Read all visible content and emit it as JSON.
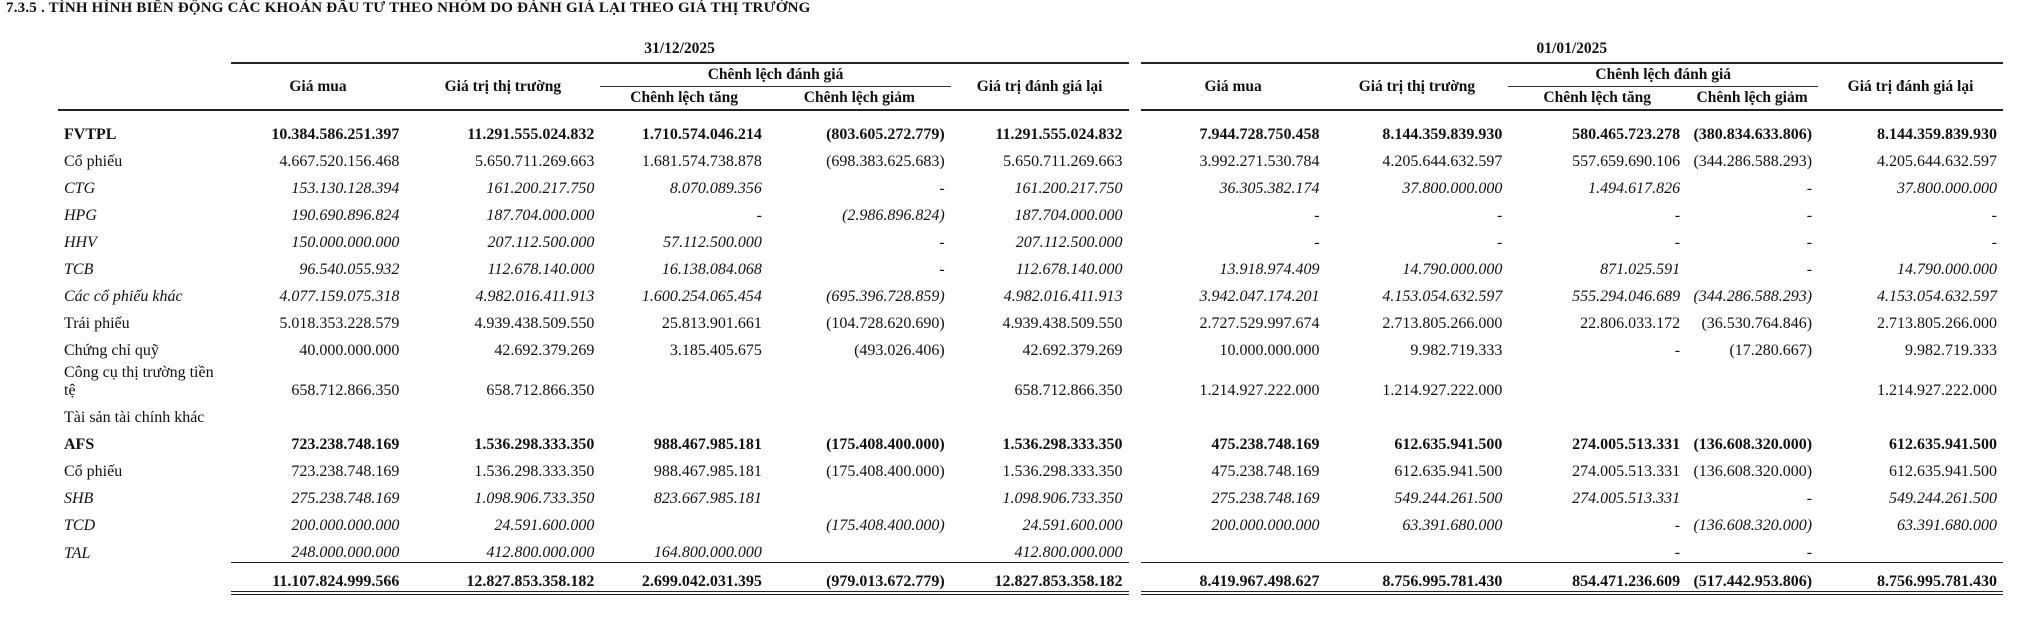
{
  "header": {
    "title": "7.3.5 . TÌNH HÌNH BIẾN ĐỘNG CÁC KHOẢN ĐẦU TƯ THEO NHÓM DO ĐÁNH GIÁ LẠI THEO GIÁ THỊ TRƯỜNG"
  },
  "table": {
    "periods": [
      "31/12/2025",
      "01/01/2025"
    ],
    "columns": [
      "Giá mua",
      "Giá trị thị trường",
      "Chênh lệch đánh giá",
      "Chênh lệch tăng",
      "Chênh lệch giảm",
      "Giá trị đánh giá lại"
    ],
    "rows": [
      {
        "label": "FVTPL",
        "values": [
          "10.384.586.251.397",
          "11.291.555.024.832",
          "1.710.574.046.214",
          "(803.605.272.779)",
          "11.291.555.024.832",
          "7.944.728.750.458",
          "8.144.359.839.930",
          "580.465.723.278",
          "(380.834.633.806)",
          "8.144.359.839.930"
        ]
      },
      {
        "label": "Cổ phiếu",
        "values": [
          "4.667.520.156.468",
          "5.650.711.269.663",
          "1.681.574.738.878",
          "(698.383.625.683)",
          "5.650.711.269.663",
          "3.992.271.530.784",
          "4.205.644.632.597",
          "557.659.690.106",
          "(344.286.588.293)",
          "4.205.644.632.597"
        ]
      },
      {
        "label": "CTG",
        "values": [
          "153.130.128.394",
          "161.200.217.750",
          "8.070.089.356",
          "-",
          "161.200.217.750",
          "36.305.382.174",
          "37.800.000.000",
          "1.494.617.826",
          "-",
          "37.800.000.000"
        ]
      },
      {
        "label": "HPG",
        "values": [
          "190.690.896.824",
          "187.704.000.000",
          "-",
          "(2.986.896.824)",
          "187.704.000.000",
          "-",
          "-",
          "-",
          "-",
          "-"
        ]
      },
      {
        "label": "HHV",
        "values": [
          "150.000.000.000",
          "207.112.500.000",
          "57.112.500.000",
          "-",
          "207.112.500.000",
          "-",
          "-",
          "-",
          "-",
          "-"
        ]
      },
      {
        "label": "TCB",
        "values": [
          "96.540.055.932",
          "112.678.140.000",
          "16.138.084.068",
          "-",
          "112.678.140.000",
          "13.918.974.409",
          "14.790.000.000",
          "871.025.591",
          "-",
          "14.790.000.000"
        ]
      },
      {
        "label": "Các cổ phiếu khác",
        "values": [
          "4.077.159.075.318",
          "4.982.016.411.913",
          "1.600.254.065.454",
          "(695.396.728.859)",
          "4.982.016.411.913",
          "3.942.047.174.201",
          "4.153.054.632.597",
          "555.294.046.689",
          "(344.286.588.293)",
          "4.153.054.632.597"
        ]
      },
      {
        "label": "Trái phiếu",
        "values": [
          "5.018.353.228.579",
          "4.939.438.509.550",
          "25.813.901.661",
          "(104.728.620.690)",
          "4.939.438.509.550",
          "2.727.529.997.674",
          "2.713.805.266.000",
          "22.806.033.172",
          "(36.530.764.846)",
          "2.713.805.266.000"
        ]
      },
      {
        "label": "Chứng chỉ quỹ",
        "values": [
          "40.000.000.000",
          "42.692.379.269",
          "3.185.405.675",
          "(493.026.406)",
          "42.692.379.269",
          "10.000.000.000",
          "9.982.719.333",
          "-",
          "(17.280.667)",
          "9.982.719.333"
        ]
      },
      {
        "label": "Công cụ thị trường tiền tệ",
        "values": [
          "658.712.866.350",
          "658.712.866.350",
          null,
          null,
          "658.712.866.350",
          "1.214.927.222.000",
          "1.214.927.222.000",
          null,
          null,
          "1.214.927.222.000"
        ]
      },
      {
        "label": "Tài sản tài chính khác",
        "values": [
          null,
          null,
          null,
          null,
          null,
          null,
          null,
          null,
          null,
          null
        ]
      },
      {
        "label": "AFS",
        "values": [
          "723.238.748.169",
          "1.536.298.333.350",
          "988.467.985.181",
          "(175.408.400.000)",
          "1.536.298.333.350",
          "475.238.748.169",
          "612.635.941.500",
          "274.005.513.331",
          "(136.608.320.000)",
          "612.635.941.500"
        ]
      },
      {
        "label": "Cổ phiếu",
        "values": [
          "723.238.748.169",
          "1.536.298.333.350",
          "988.467.985.181",
          "(175.408.400.000)",
          "1.536.298.333.350",
          "475.238.748.169",
          "612.635.941.500",
          "274.005.513.331",
          "(136.608.320.000)",
          "612.635.941.500"
        ]
      },
      {
        "label": "SHB",
        "values": [
          "275.238.748.169",
          "1.098.906.733.350",
          "823.667.985.181",
          null,
          "1.098.906.733.350",
          "275.238.748.169",
          "549.244.261.500",
          "274.005.513.331",
          "-",
          "549.244.261.500"
        ]
      },
      {
        "label": "TCD",
        "values": [
          "200.000.000.000",
          "24.591.600.000",
          null,
          "(175.408.400.000)",
          "24.591.600.000",
          "200.000.000.000",
          "63.391.680.000",
          "-",
          "(136.608.320.000)",
          "63.391.680.000"
        ]
      },
      {
        "label": "TAL",
        "values": [
          "248.000.000.000",
          "412.800.000.000",
          "164.800.000.000",
          null,
          "412.800.000.000",
          null,
          null,
          "-",
          "-",
          null
        ]
      },
      {
        "label": null,
        "values": [
          "11.107.824.999.566",
          "12.827.853.358.182",
          "2.699.042.031.395",
          "(979.013.672.779)",
          "12.827.853.358.182",
          "8.419.967.498.627",
          "8.756.995.781.430",
          "854.471.236.609",
          "(517.442.953.806)",
          "8.756.995.781.430"
        ]
      }
    ]
  }
}
